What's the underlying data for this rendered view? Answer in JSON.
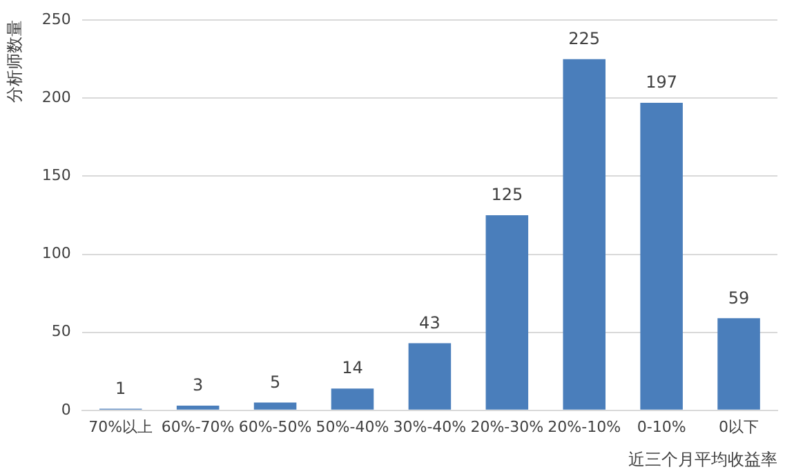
{
  "chart_data": {
    "type": "bar",
    "xlabel": "近三个月平均收益率",
    "ylabel": "分析师数量",
    "categories": [
      "70%以上",
      "60%-70%",
      "60%-50%",
      "50%-40%",
      "30%-40%",
      "20%-30%",
      "20%-10%",
      "0-10%",
      "0以下"
    ],
    "values": [
      1,
      3,
      5,
      14,
      43,
      125,
      225,
      197,
      59
    ],
    "color": "#4a7ebb",
    "ylim": [
      0,
      250
    ],
    "yticks": [
      0,
      50,
      100,
      150,
      200,
      250
    ],
    "grid": "y",
    "data_labels": true
  }
}
